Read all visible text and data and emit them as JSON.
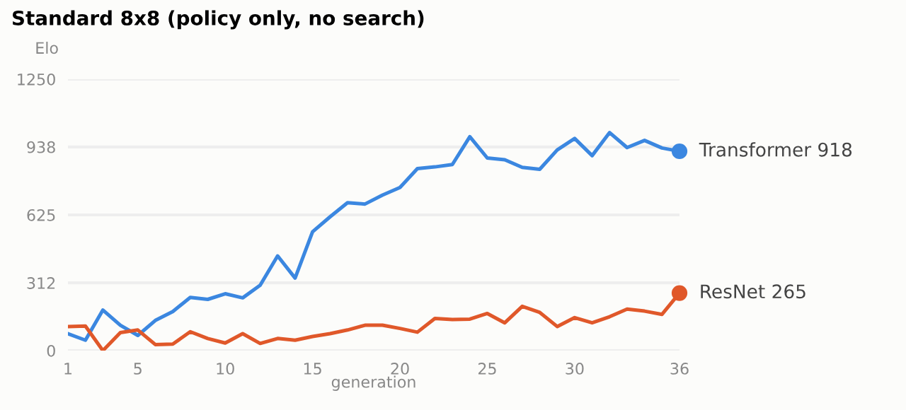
{
  "chart_data": {
    "type": "line",
    "title": "Standard 8x8 (policy only, no search)",
    "xlabel": "generation",
    "ylabel": "Elo",
    "x": [
      1,
      2,
      3,
      4,
      5,
      6,
      7,
      8,
      9,
      10,
      11,
      12,
      13,
      14,
      15,
      16,
      17,
      18,
      19,
      20,
      21,
      22,
      23,
      24,
      25,
      26,
      27,
      28,
      29,
      30,
      31,
      32,
      33,
      34,
      35,
      36
    ],
    "series": [
      {
        "name": "Transformer",
        "color": "#3b87e0",
        "values": [
          78,
          48,
          187,
          117,
          70,
          139,
          180,
          245,
          236,
          262,
          243,
          301,
          436,
          334,
          547,
          616,
          681,
          675,
          716,
          751,
          838,
          846,
          857,
          985,
          887,
          879,
          844,
          835,
          924,
          977,
          898,
          1004,
          935,
          968,
          933,
          918
        ],
        "value_labels": [
          null,
          null,
          null,
          null,
          null,
          null,
          null,
          null,
          null,
          null,
          null,
          null,
          null,
          null,
          null,
          null,
          null,
          null,
          null,
          null,
          null,
          null,
          null,
          null,
          null,
          null,
          null,
          null,
          null,
          null,
          null,
          null,
          null,
          null,
          null,
          "918"
        ]
      },
      {
        "name": "ResNet",
        "color": "#e0582a",
        "values": [
          111,
          113,
          0,
          83,
          95,
          28,
          30,
          87,
          56,
          35,
          78,
          33,
          56,
          48,
          65,
          78,
          95,
          117,
          117,
          102,
          85,
          148,
          143,
          145,
          171,
          128,
          204,
          176,
          111,
          152,
          128,
          156,
          191,
          182,
          167,
          265
        ],
        "value_labels": [
          null,
          null,
          null,
          null,
          null,
          null,
          null,
          null,
          null,
          null,
          null,
          null,
          null,
          null,
          null,
          null,
          null,
          null,
          null,
          null,
          null,
          null,
          null,
          null,
          null,
          null,
          null,
          null,
          null,
          null,
          null,
          null,
          null,
          null,
          null,
          "265"
        ]
      }
    ],
    "xlim": [
      1,
      36
    ],
    "xticks": [
      1,
      5,
      10,
      15,
      20,
      25,
      30,
      36
    ],
    "ylim": [
      0,
      1250
    ],
    "yticks": [
      0,
      312,
      625,
      938,
      1250
    ],
    "grid": "y",
    "legend": false,
    "marker": "none",
    "line_style": "solid"
  }
}
